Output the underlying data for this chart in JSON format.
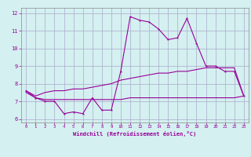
{
  "xlabel": "Windchill (Refroidissement éolien,°C)",
  "ylabel": "",
  "background_color": "#d4f0f0",
  "grid_color": "#aaaacc",
  "line_color": "#990099",
  "xlim": [
    -0.5,
    23.5
  ],
  "ylim": [
    5.8,
    12.3
  ],
  "yticks": [
    6,
    7,
    8,
    9,
    10,
    11,
    12
  ],
  "xticks": [
    0,
    1,
    2,
    3,
    4,
    5,
    6,
    7,
    8,
    9,
    10,
    11,
    12,
    13,
    14,
    15,
    16,
    17,
    18,
    19,
    20,
    21,
    22,
    23
  ],
  "curve1": {
    "x": [
      0,
      1,
      2,
      3,
      4,
      5,
      6,
      7,
      8,
      9,
      10,
      11,
      12,
      13,
      14,
      15,
      16,
      17,
      18,
      19,
      20,
      21,
      22,
      23
    ],
    "y": [
      7.6,
      7.2,
      7.0,
      7.0,
      6.3,
      6.4,
      6.3,
      7.2,
      6.5,
      6.5,
      8.7,
      11.8,
      11.6,
      11.5,
      11.1,
      10.5,
      10.6,
      11.7,
      10.3,
      9.0,
      9.0,
      8.7,
      8.7,
      7.3
    ]
  },
  "curve2": {
    "x": [
      0,
      1,
      2,
      3,
      4,
      5,
      6,
      7,
      8,
      9,
      10,
      11,
      12,
      13,
      14,
      15,
      16,
      17,
      18,
      19,
      20,
      21,
      22,
      23
    ],
    "y": [
      7.6,
      7.3,
      7.5,
      7.6,
      7.6,
      7.7,
      7.7,
      7.8,
      7.9,
      8.0,
      8.2,
      8.3,
      8.4,
      8.5,
      8.6,
      8.6,
      8.7,
      8.7,
      8.8,
      8.9,
      8.9,
      8.9,
      8.9,
      7.3
    ]
  },
  "curve3": {
    "x": [
      0,
      1,
      2,
      3,
      4,
      5,
      6,
      7,
      8,
      9,
      10,
      11,
      12,
      13,
      14,
      15,
      16,
      17,
      18,
      19,
      20,
      21,
      22,
      23
    ],
    "y": [
      7.5,
      7.2,
      7.1,
      7.1,
      7.1,
      7.1,
      7.1,
      7.1,
      7.1,
      7.1,
      7.1,
      7.2,
      7.2,
      7.2,
      7.2,
      7.2,
      7.2,
      7.2,
      7.2,
      7.2,
      7.2,
      7.2,
      7.2,
      7.3
    ]
  }
}
